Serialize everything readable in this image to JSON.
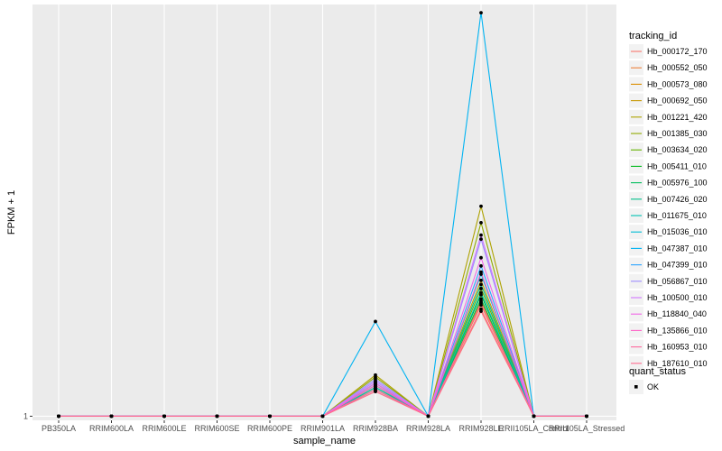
{
  "chart_data": {
    "type": "line",
    "title": "",
    "xlabel": "sample_name",
    "ylabel": "FPKM + 1",
    "y_tick_labels": [
      "1"
    ],
    "y_tick_values": [
      1
    ],
    "ylim": [
      0.8,
      21.0
    ],
    "grid": true,
    "legend_position": "right",
    "categories": [
      "PB350LA",
      "RRIM600LA",
      "RRIM600LE",
      "RRIM600SE",
      "RRIM600PE",
      "RRIM901LA",
      "RRIM928BA",
      "RRIM928LA",
      "RRIM928LE",
      "RRII105LA_Control",
      "RRII105LA_Stressed"
    ],
    "legend_title": "tracking_id",
    "series": [
      {
        "name": "Hb_000172_170",
        "color": "#F8766D",
        "values": [
          1,
          1,
          1,
          1,
          1,
          1,
          2.2,
          1,
          6.1,
          1,
          1
        ]
      },
      {
        "name": "Hb_000552_050",
        "color": "#EC823C",
        "values": [
          1,
          1,
          1,
          1,
          1,
          1,
          2.3,
          1,
          6.4,
          1,
          1
        ]
      },
      {
        "name": "Hb_000573_080",
        "color": "#DB8E00",
        "values": [
          1,
          1,
          1,
          1,
          1,
          1,
          2.4,
          1,
          6.6,
          1,
          1
        ]
      },
      {
        "name": "Hb_000692_050",
        "color": "#C79800",
        "values": [
          1,
          1,
          1,
          1,
          1,
          1,
          2.5,
          1,
          7.6,
          1,
          1
        ]
      },
      {
        "name": "Hb_001221_420",
        "color": "#AEA200",
        "values": [
          1,
          1,
          1,
          1,
          1,
          1,
          3.0,
          1,
          11.2,
          1,
          1
        ]
      },
      {
        "name": "Hb_001385_030",
        "color": "#8FAA00",
        "values": [
          1,
          1,
          1,
          1,
          1,
          1,
          2.9,
          1,
          10.4,
          1,
          1
        ]
      },
      {
        "name": "Hb_003634_020",
        "color": "#64B200",
        "values": [
          1,
          1,
          1,
          1,
          1,
          1,
          2.6,
          1,
          7.2,
          1,
          1
        ]
      },
      {
        "name": "Hb_005411_010",
        "color": "#00B81B",
        "values": [
          1,
          1,
          1,
          1,
          1,
          1,
          2.4,
          1,
          6.9,
          1,
          1
        ]
      },
      {
        "name": "Hb_005976_100",
        "color": "#00BD5C",
        "values": [
          1,
          1,
          1,
          1,
          1,
          1,
          2.3,
          1,
          6.7,
          1,
          1
        ]
      },
      {
        "name": "Hb_007426_020",
        "color": "#00C08B",
        "values": [
          1,
          1,
          1,
          1,
          1,
          1,
          2.5,
          1,
          7.4,
          1,
          1
        ]
      },
      {
        "name": "Hb_011675_010",
        "color": "#00C1B2",
        "values": [
          1,
          1,
          1,
          1,
          1,
          1,
          2.4,
          1,
          7.0,
          1,
          1
        ]
      },
      {
        "name": "Hb_015036_010",
        "color": "#00BCD6",
        "values": [
          1,
          1,
          1,
          1,
          1,
          1,
          2.6,
          1,
          7.9,
          1,
          1
        ]
      },
      {
        "name": "Hb_047387_010",
        "color": "#00B3F2",
        "values": [
          1,
          1,
          1,
          1,
          1,
          1,
          5.6,
          1,
          20.6,
          1,
          1
        ]
      },
      {
        "name": "Hb_047399_010",
        "color": "#29A3FF",
        "values": [
          1,
          1,
          1,
          1,
          1,
          1,
          2.7,
          1,
          8.3,
          1,
          1
        ]
      },
      {
        "name": "Hb_056867_010",
        "color": "#9C8DFF",
        "values": [
          1,
          1,
          1,
          1,
          1,
          1,
          2.8,
          1,
          9.6,
          1,
          1
        ]
      },
      {
        "name": "Hb_100500_010",
        "color": "#D277FF",
        "values": [
          1,
          1,
          1,
          1,
          1,
          1,
          2.7,
          1,
          9.8,
          1,
          1
        ]
      },
      {
        "name": "Hb_118840_040",
        "color": "#F166E8",
        "values": [
          1,
          1,
          1,
          1,
          1,
          1,
          2.6,
          1,
          8.7,
          1,
          1
        ]
      },
      {
        "name": "Hb_135866_010",
        "color": "#FF61C7",
        "values": [
          1,
          1,
          1,
          1,
          1,
          1,
          2.5,
          1,
          8.0,
          1,
          1
        ]
      },
      {
        "name": "Hb_160953_010",
        "color": "#FF689E",
        "values": [
          1,
          1,
          1,
          1,
          1,
          1,
          2.3,
          1,
          6.5,
          1,
          1
        ]
      },
      {
        "name": "Hb_187610_010",
        "color": "#FF6C91",
        "values": [
          1,
          1,
          1,
          1,
          1,
          1,
          2.2,
          1,
          6.2,
          1,
          1
        ]
      }
    ],
    "point_legend": {
      "title": "quant_status",
      "entries": [
        "OK"
      ]
    }
  },
  "colors": {
    "panel_background": "#EBEBEB",
    "grid_major": "#FFFFFF",
    "grid_minor": "#F2F2F2",
    "point": "#000000",
    "legend_key_background": "#F2F2F2"
  }
}
